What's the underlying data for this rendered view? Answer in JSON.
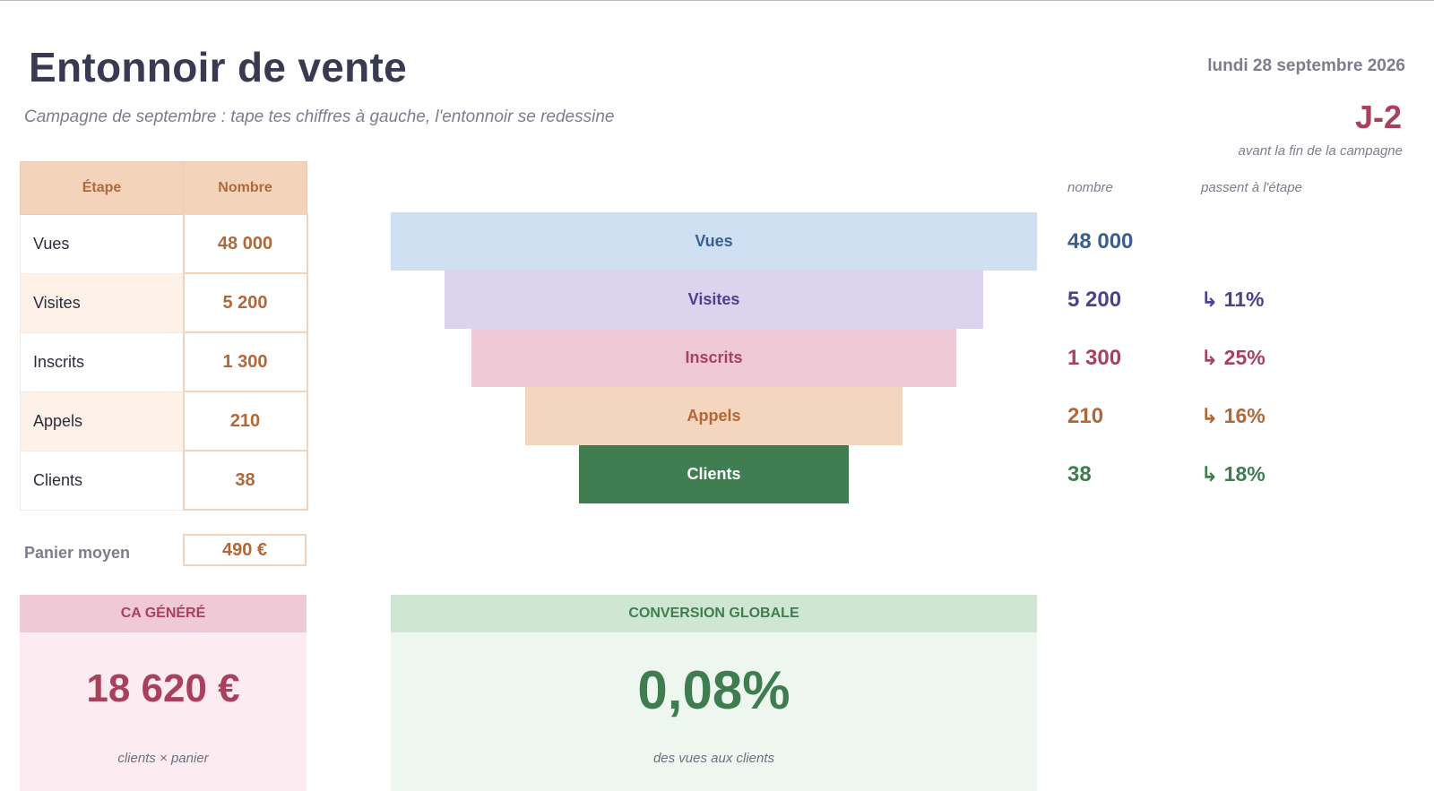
{
  "header": {
    "title": "Entonnoir de vente",
    "subtitle": "Campagne de septembre : tape tes chiffres à gauche, l'entonnoir se redessine",
    "date": "lundi 28 septembre 2026",
    "countdown": "J-2",
    "countdown_note": "avant la fin de la campagne"
  },
  "input_table": {
    "col_stage": "Étape",
    "col_count": "Nombre",
    "rows": [
      {
        "stage": "Vues",
        "count": "48 000"
      },
      {
        "stage": "Visites",
        "count": "5 200"
      },
      {
        "stage": "Inscrits",
        "count": "1 300"
      },
      {
        "stage": "Appels",
        "count": "210"
      },
      {
        "stage": "Clients",
        "count": "38"
      }
    ],
    "panier_label": "Panier moyen",
    "panier_value": "490 €"
  },
  "funnel": {
    "col_count_header": "nombre",
    "col_pass_header": "passent à l'étape",
    "arrow": "↳",
    "stages": [
      {
        "label": "Vues",
        "count": "48 000",
        "pass": "",
        "fill": "#cfe0f3",
        "text": "#3a5f8f"
      },
      {
        "label": "Visites",
        "count": "5 200",
        "pass": "11%",
        "fill": "#dcd3ee",
        "text": "#4f3f8c"
      },
      {
        "label": "Inscrits",
        "count": "1 300",
        "pass": "25%",
        "fill": "#efc9d6",
        "text": "#a8405e"
      },
      {
        "label": "Appels",
        "count": "210",
        "pass": "16%",
        "fill": "#f4d5bd",
        "text": "#b0683a"
      },
      {
        "label": "Clients",
        "count": "38",
        "pass": "18%",
        "fill": "#3f7d51",
        "text": "#ffffff"
      }
    ]
  },
  "kpi": {
    "ca": {
      "title": "CA GÉNÉRÉ",
      "value": "18 620 €",
      "note": "clients × panier",
      "head_bg": "#efc9d6",
      "body_bg": "#fcecf1",
      "color": "#a8405e"
    },
    "conversion": {
      "title": "CONVERSION GLOBALE",
      "value": "0,08%",
      "note": "des vues aux clients",
      "head_bg": "#cfe6d3",
      "body_bg": "#eef7ef",
      "color": "#3f7d51"
    }
  }
}
